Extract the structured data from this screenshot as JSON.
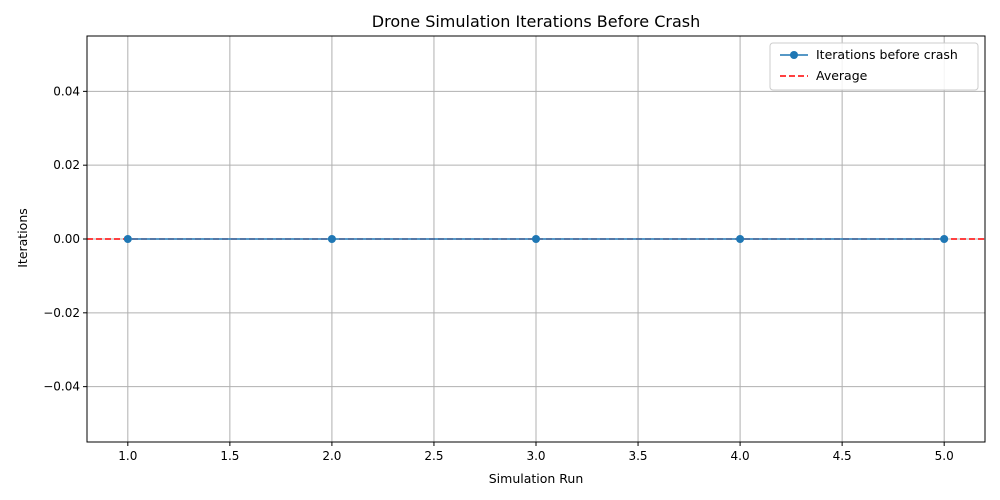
{
  "chart_data": {
    "type": "line",
    "title": "Drone Simulation Iterations Before Crash",
    "xlabel": "Simulation Run",
    "ylabel": "Iterations",
    "xlim": [
      0.8,
      5.2
    ],
    "ylim": [
      -0.055,
      0.055
    ],
    "x_ticks": [
      1.0,
      1.5,
      2.0,
      2.5,
      3.0,
      3.5,
      4.0,
      4.5,
      5.0
    ],
    "y_ticks": [
      -0.04,
      -0.02,
      0.0,
      0.02,
      0.04
    ],
    "x_tick_labels": [
      "1.0",
      "1.5",
      "2.0",
      "2.5",
      "3.0",
      "3.5",
      "4.0",
      "4.5",
      "5.0"
    ],
    "y_tick_labels": [
      "−0.04",
      "−0.02",
      "0.00",
      "0.02",
      "0.04"
    ],
    "grid": true,
    "legend_position": "top-right",
    "series": [
      {
        "name": "Iterations before crash",
        "x": [
          1,
          2,
          3,
          4,
          5
        ],
        "values": [
          0,
          0,
          0,
          0,
          0
        ],
        "color": "#1f77b4",
        "marker": "circle",
        "line_style": "solid"
      }
    ],
    "reference_lines": [
      {
        "name": "Average",
        "y": 0,
        "color": "#ff0000",
        "line_style": "dashed"
      }
    ]
  }
}
